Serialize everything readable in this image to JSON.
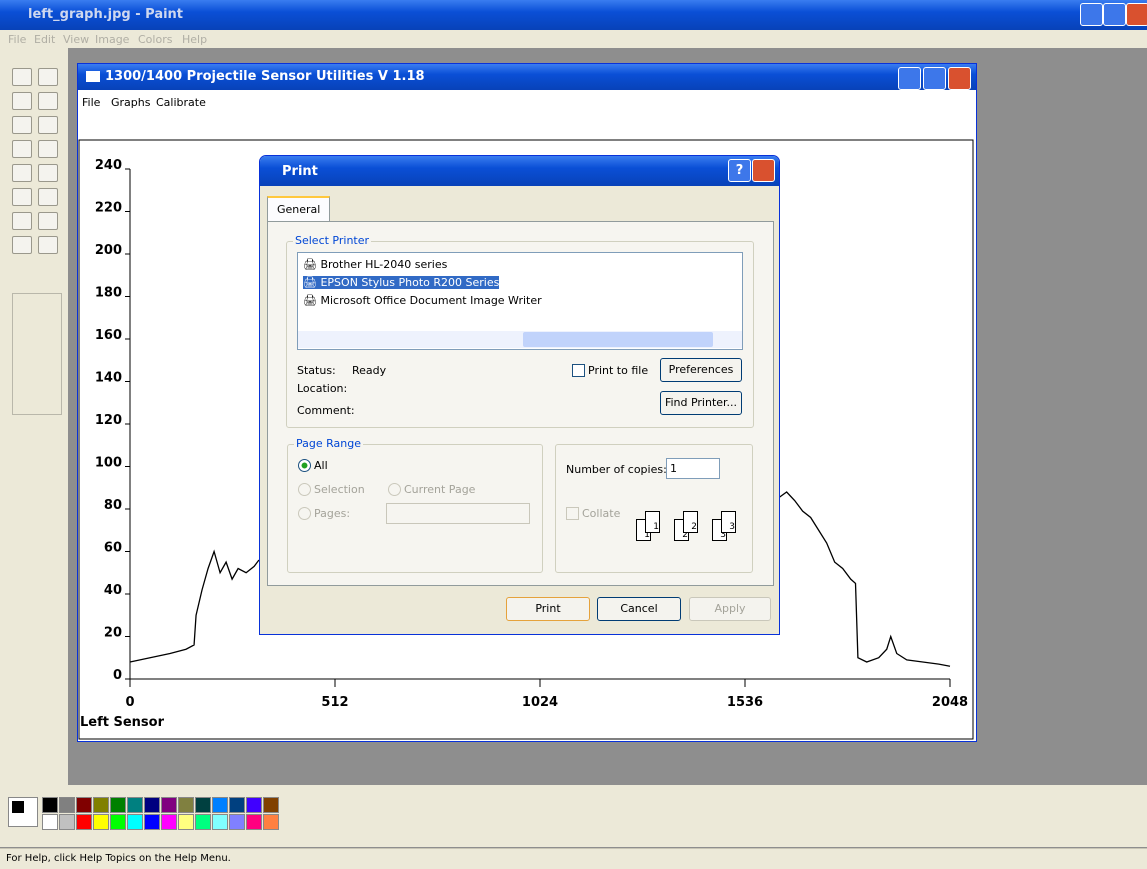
{
  "paint": {
    "title": "left_graph.jpg - Paint",
    "menu": [
      "File",
      "Edit",
      "View",
      "Image",
      "Colors",
      "Help"
    ],
    "status": "For Help, click Help Topics on the Help Menu."
  },
  "app": {
    "title": "1300/1400 Projectile Sensor Utilities V 1.18",
    "menu": [
      "File",
      "Graphs",
      "Calibrate"
    ]
  },
  "chart_data": {
    "type": "line",
    "x_label": "Left Sensor",
    "x": [
      0,
      50,
      100,
      140,
      160,
      165,
      180,
      195,
      210,
      225,
      240,
      255,
      270,
      290,
      310,
      322,
      1000,
      1618,
      1640,
      1660,
      1680,
      1700,
      1720,
      1740,
      1760,
      1780,
      1800,
      1812,
      1818,
      1840,
      1870,
      1890,
      1900,
      1915,
      1940,
      1980,
      2020,
      2048
    ],
    "series": [
      {
        "color": "#000000",
        "values": [
          8,
          10,
          12,
          14,
          16,
          30,
          42,
          52,
          60,
          50,
          55,
          47,
          52,
          50,
          53,
          56,
          null,
          85,
          88,
          84,
          79,
          76,
          70,
          64,
          55,
          52,
          47,
          45,
          10,
          8,
          10,
          14,
          20,
          12,
          9,
          8,
          7,
          6
        ]
      }
    ],
    "xlim": [
      0,
      2048
    ],
    "ylim": [
      0,
      240
    ],
    "xticks": [
      0,
      512,
      1024,
      1536,
      2048
    ],
    "yticks": [
      0,
      20,
      40,
      60,
      80,
      100,
      120,
      140,
      160,
      180,
      200,
      220,
      240
    ]
  },
  "dialog": {
    "title": "Print",
    "tab": "General",
    "select_printer": "Select Printer",
    "printers": [
      "Brother HL-2040 series",
      "EPSON Stylus Photo R200 Series",
      "Microsoft Office Document Image Writer"
    ],
    "status_label": "Status:",
    "status": "Ready",
    "location_label": "Location:",
    "comment_label": "Comment:",
    "print_to_file": "Print to file",
    "preferences": "Preferences",
    "find_printer": "Find Printer...",
    "page_range": "Page Range",
    "all": "All",
    "selection": "Selection",
    "current_page": "Current Page",
    "pages": "Pages:",
    "copies_label": "Number of copies:",
    "copies": "1",
    "collate": "Collate",
    "collate_icons": [
      "1",
      "1",
      "2",
      "2",
      "3",
      "3"
    ],
    "print": "Print",
    "cancel": "Cancel",
    "apply": "Apply"
  }
}
